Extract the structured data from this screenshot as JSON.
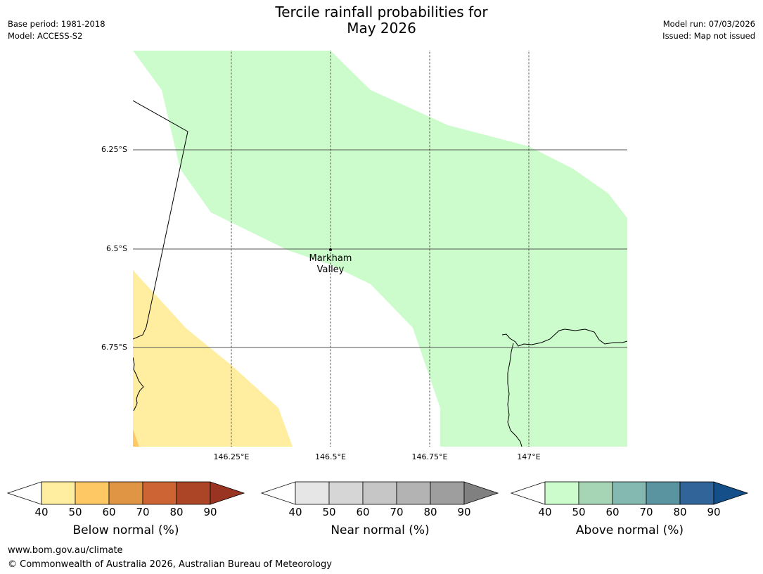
{
  "header": {
    "title_line1": "Tercile rainfall probabilities for",
    "title_line2": "May 2026",
    "base_period": "Base period: 1981-2018",
    "model": "Model: ACCESS-S2",
    "model_run": "Model run: 07/03/2026",
    "issued": "Issued: Map not issued"
  },
  "map": {
    "lat_labels": [
      "6.25°S",
      "6.5°S",
      "6.75°S"
    ],
    "lon_labels": [
      "146.25°E",
      "146.5°E",
      "146.75°E",
      "147°E"
    ],
    "location": {
      "name_line1": "Markham",
      "name_line2": "Valley",
      "lat": -6.5,
      "lon": 146.5
    },
    "colors": {
      "below_40_50": "#ffeda0",
      "below_50_60": "#fec965",
      "above_40_50": "#ccfccc"
    }
  },
  "colorbars": [
    {
      "label": "Below normal (%)",
      "ticks": [
        "40",
        "50",
        "60",
        "70",
        "80",
        "90"
      ],
      "colors": [
        "#ffffff",
        "#ffeda0",
        "#fec965",
        "#e09545",
        "#cc6434",
        "#ac4526",
        "#983421"
      ]
    },
    {
      "label": "Near normal (%)",
      "ticks": [
        "40",
        "50",
        "60",
        "70",
        "80",
        "90"
      ],
      "colors": [
        "#ffffff",
        "#e6e6e6",
        "#d6d6d6",
        "#c6c6c6",
        "#b3b3b3",
        "#9e9e9e",
        "#808080"
      ]
    },
    {
      "label": "Above normal (%)",
      "ticks": [
        "40",
        "50",
        "60",
        "70",
        "80",
        "90"
      ],
      "colors": [
        "#ffffff",
        "#ccfccc",
        "#a6d5b5",
        "#84b9b1",
        "#5a94a0",
        "#316498",
        "#144f89"
      ]
    }
  ],
  "footer": {
    "url": "www.bom.gov.au/climate",
    "copyright": "© Commonwealth of Australia 2026, Australian Bureau of Meteorology"
  }
}
